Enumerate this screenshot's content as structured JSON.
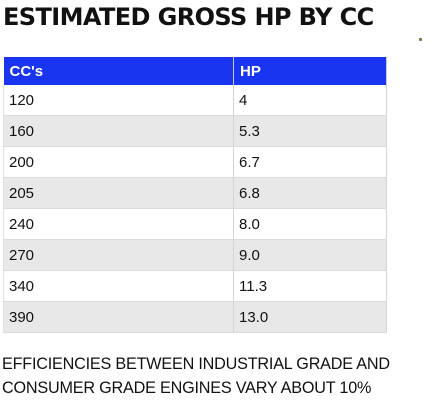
{
  "title": "ESTIMATED GROSS HP BY CC",
  "table": {
    "headers": [
      "CC's",
      "HP"
    ],
    "rows": [
      [
        "120",
        "4"
      ],
      [
        "160",
        "5.3"
      ],
      [
        "200",
        "6.7"
      ],
      [
        "205",
        "6.8"
      ],
      [
        "240",
        "8.0"
      ],
      [
        "270",
        "9.0"
      ],
      [
        "340",
        "11.3"
      ],
      [
        "390",
        "13.0"
      ]
    ]
  },
  "note": {
    "line1": "EFFICIENCIES BETWEEN INDUSTRIAL GRADE AND",
    "line2": "CONSUMER GRADE ENGINES VARY ABOUT 10%"
  },
  "colors": {
    "header_bg": "#1a35f0",
    "stripe_bg": "#e8e8e8"
  }
}
